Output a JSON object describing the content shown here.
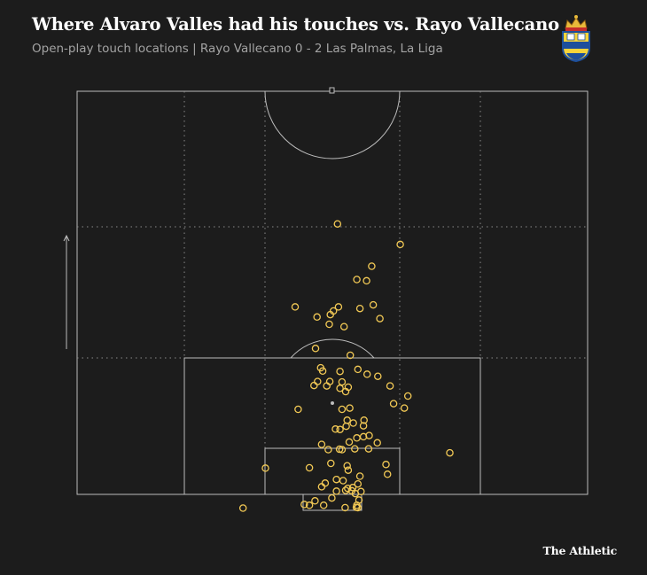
{
  "header": {
    "title": "Where Alvaro Valles had his touches vs. Rayo Vallecano",
    "subtitle": "Open-play touch locations |  Rayo Vallecano 0 - 2 Las Palmas, La Liga"
  },
  "footer": {
    "brand": "The Athletic"
  },
  "colors": {
    "background": "#1c1c1c",
    "lines": "#bdbdbd",
    "touch": "#f2c955"
  },
  "chart_data": {
    "type": "scatter",
    "title": "Where Alvaro Valles had his touches vs. Rayo Vallecano",
    "subtitle": "Open-play touch locations |  Rayo Vallecano 0 - 2 Las Palmas, La Liga",
    "xlabel": "",
    "ylabel": "",
    "grid": true,
    "xlim": [
      0,
      100
    ],
    "ylim": [
      0,
      100
    ],
    "series": [
      {
        "points": [
          [
            51.0,
            67.1
          ],
          [
            63.3,
            62.0
          ],
          [
            57.7,
            56.6
          ],
          [
            54.8,
            53.3
          ],
          [
            56.7,
            53.0
          ],
          [
            42.7,
            46.5
          ],
          [
            49.6,
            44.6
          ],
          [
            51.2,
            46.5
          ],
          [
            55.4,
            46.1
          ],
          [
            58.0,
            47.0
          ],
          [
            47.0,
            44.0
          ],
          [
            50.2,
            45.5
          ],
          [
            59.3,
            43.6
          ],
          [
            49.4,
            42.2
          ],
          [
            52.3,
            41.6
          ],
          [
            46.7,
            36.2
          ],
          [
            53.5,
            34.5
          ],
          [
            47.7,
            31.4
          ],
          [
            48.1,
            30.6
          ],
          [
            55.0,
            31.0
          ],
          [
            51.5,
            30.5
          ],
          [
            56.8,
            29.8
          ],
          [
            58.9,
            29.3
          ],
          [
            47.1,
            28.0
          ],
          [
            51.9,
            27.9
          ],
          [
            46.4,
            27.0
          ],
          [
            48.9,
            26.9
          ],
          [
            49.5,
            28.0
          ],
          [
            51.5,
            26.3
          ],
          [
            53.1,
            26.6
          ],
          [
            52.6,
            25.5
          ],
          [
            61.3,
            26.9
          ],
          [
            64.8,
            24.4
          ],
          [
            53.4,
            21.4
          ],
          [
            62.0,
            22.5
          ],
          [
            43.3,
            21.1
          ],
          [
            51.9,
            21.1
          ],
          [
            64.1,
            21.4
          ],
          [
            56.2,
            18.4
          ],
          [
            52.9,
            18.4
          ],
          [
            54.1,
            17.7
          ],
          [
            56.1,
            17.0
          ],
          [
            51.5,
            16.1
          ],
          [
            52.7,
            16.9
          ],
          [
            50.6,
            16.2
          ],
          [
            57.2,
            14.6
          ],
          [
            56.1,
            14.3
          ],
          [
            53.3,
            13.0
          ],
          [
            54.8,
            14.0
          ],
          [
            58.8,
            12.8
          ],
          [
            47.9,
            12.4
          ],
          [
            54.4,
            11.3
          ],
          [
            49.2,
            11.1
          ],
          [
            51.9,
            11.1
          ],
          [
            57.1,
            11.3
          ],
          [
            51.4,
            11.2
          ],
          [
            73.0,
            10.3
          ],
          [
            36.9,
            6.5
          ],
          [
            53.1,
            6.0
          ],
          [
            55.4,
            4.5
          ],
          [
            60.5,
            7.4
          ],
          [
            52.9,
            7.1
          ],
          [
            49.7,
            7.7
          ],
          [
            45.5,
            6.6
          ],
          [
            60.8,
            5.0
          ],
          [
            52.1,
            3.4
          ],
          [
            50.8,
            3.7
          ],
          [
            48.6,
            2.8
          ],
          [
            55.0,
            2.6
          ],
          [
            47.9,
            1.9
          ],
          [
            53.0,
            1.5
          ],
          [
            54.0,
            1.7
          ],
          [
            52.6,
            1.0
          ],
          [
            53.8,
            0.9
          ],
          [
            50.8,
            0.8
          ],
          [
            55.6,
            0.7
          ],
          [
            54.5,
            0.2
          ],
          [
            49.9,
            -0.9
          ],
          [
            55.2,
            -1.4
          ],
          [
            46.6,
            -1.6
          ],
          [
            45.5,
            -2.7
          ],
          [
            52.5,
            -3.3
          ],
          [
            55.0,
            -3.3
          ],
          [
            44.5,
            -2.5
          ],
          [
            48.3,
            -2.7
          ],
          [
            32.5,
            -3.4
          ],
          [
            54.7,
            -3.2
          ],
          [
            54.8,
            -2.7
          ]
        ]
      }
    ]
  }
}
